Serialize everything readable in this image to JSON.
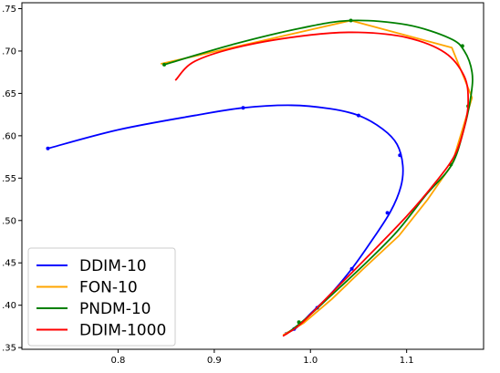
{
  "chart_data": {
    "type": "line",
    "title": "",
    "xlabel": "",
    "ylabel": "",
    "xlim": [
      0.7,
      1.18
    ],
    "ylim": [
      0.348,
      0.757
    ],
    "xticks": [
      0.8,
      0.9,
      1.0,
      1.1
    ],
    "xtick_labels": [
      "0.8",
      "0.9",
      "1.0",
      "1.1"
    ],
    "yticks": [
      0.35,
      0.4,
      0.45,
      0.5,
      0.55,
      0.6,
      0.65,
      0.7,
      0.75
    ],
    "ytick_labels": [
      ".35",
      ".40",
      ".45",
      ".50",
      ".55",
      ".60",
      ".65",
      ".70",
      ".75"
    ],
    "grid": false,
    "legend_position": "lower-left",
    "series": [
      {
        "name": "DDIM-10",
        "color": "#0000ff",
        "smooth": true,
        "x": [
          0.727,
          0.8,
          0.88,
          0.93,
          0.98,
          1.02,
          1.05,
          1.075,
          1.09,
          1.096,
          1.094,
          1.083,
          1.063,
          1.043,
          1.02,
          1.0,
          0.985,
          0.974
        ],
        "y": [
          0.585,
          0.607,
          0.624,
          0.633,
          0.636,
          0.632,
          0.624,
          0.608,
          0.59,
          0.565,
          0.54,
          0.51,
          0.475,
          0.443,
          0.412,
          0.39,
          0.373,
          0.367
        ],
        "markers_x": [
          0.727,
          0.93,
          1.05,
          1.093,
          1.08,
          1.043,
          1.007,
          0.983
        ],
        "markers_y": [
          0.585,
          0.633,
          0.624,
          0.577,
          0.509,
          0.443,
          0.397,
          0.372
        ]
      },
      {
        "name": "FON-10",
        "color": "#ffa500",
        "smooth": false,
        "x": [
          0.845,
          1.042,
          1.147,
          1.168,
          1.147,
          1.122,
          1.092,
          1.055,
          1.022,
          0.993,
          0.972
        ],
        "y": [
          0.685,
          0.736,
          0.704,
          0.645,
          0.566,
          0.525,
          0.482,
          0.443,
          0.407,
          0.379,
          0.365
        ],
        "markers_x": [],
        "markers_y": []
      },
      {
        "name": "PNDM-10",
        "color": "#008000",
        "smooth": true,
        "x": [
          0.848,
          0.92,
          0.99,
          1.042,
          1.1,
          1.145,
          1.16,
          1.168,
          1.167,
          1.16,
          1.147,
          1.12,
          1.09,
          1.055,
          1.02,
          0.995,
          0.975
        ],
        "y": [
          0.684,
          0.708,
          0.727,
          0.736,
          0.731,
          0.715,
          0.7,
          0.675,
          0.648,
          0.61,
          0.566,
          0.53,
          0.487,
          0.447,
          0.41,
          0.384,
          0.366
        ],
        "markers_x": [
          0.848,
          1.042,
          1.158,
          1.164,
          1.146,
          0.988
        ],
        "markers_y": [
          0.684,
          0.736,
          0.706,
          0.635,
          0.566,
          0.38
        ]
      },
      {
        "name": "DDIM-1000",
        "color": "#ff0000",
        "smooth": true,
        "x": [
          0.86,
          0.88,
          0.93,
          1.0,
          1.05,
          1.1,
          1.14,
          1.16,
          1.164,
          1.16,
          1.15,
          1.13,
          1.1,
          1.06,
          1.02,
          0.99,
          0.972
        ],
        "y": [
          0.666,
          0.688,
          0.706,
          0.719,
          0.722,
          0.716,
          0.698,
          0.67,
          0.64,
          0.61,
          0.577,
          0.545,
          0.505,
          0.458,
          0.412,
          0.378,
          0.364
        ],
        "markers_x": [],
        "markers_y": []
      }
    ]
  }
}
